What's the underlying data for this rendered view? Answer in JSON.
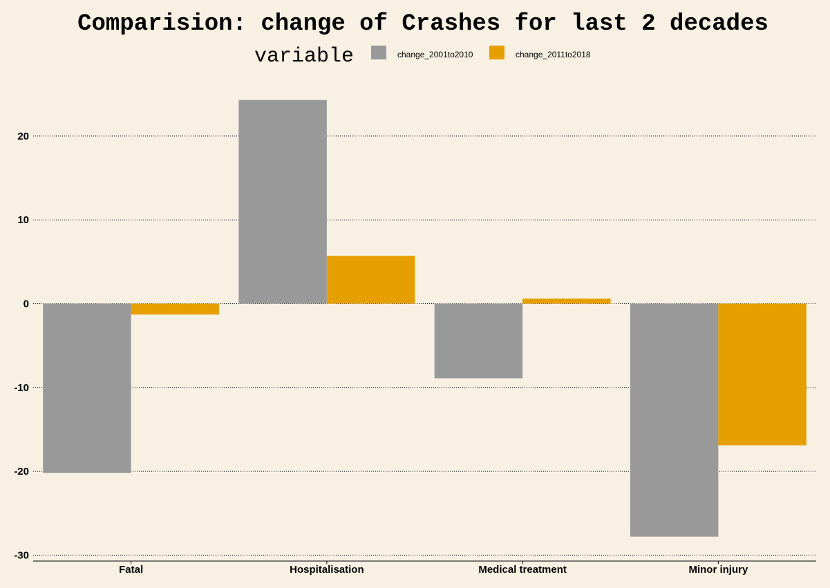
{
  "chart_data": {
    "type": "bar",
    "title": "Comparision: change of Crashes for last 2 decades",
    "legend_title": "variable",
    "legend_placement": "top",
    "categories": [
      "Fatal",
      "Hospitalisation",
      "Medical treatment",
      "Minor injury"
    ],
    "series": [
      {
        "name": "change_2001to2010",
        "color": "#999999",
        "values": [
          -20.2,
          24.3,
          -8.9,
          -27.8
        ]
      },
      {
        "name": "change_2011to2018",
        "color": "#e69f00",
        "values": [
          -1.3,
          5.7,
          0.6,
          -16.9
        ]
      }
    ],
    "ylim": [
      -30.3,
      27
    ],
    "y_ticks": [
      -30,
      -20,
      -10,
      0,
      10,
      20
    ],
    "y_tick_labels": [
      "-30",
      "-20",
      "-10",
      "0",
      "10",
      "20"
    ],
    "grid": true,
    "xlabel": "",
    "ylabel": ""
  }
}
